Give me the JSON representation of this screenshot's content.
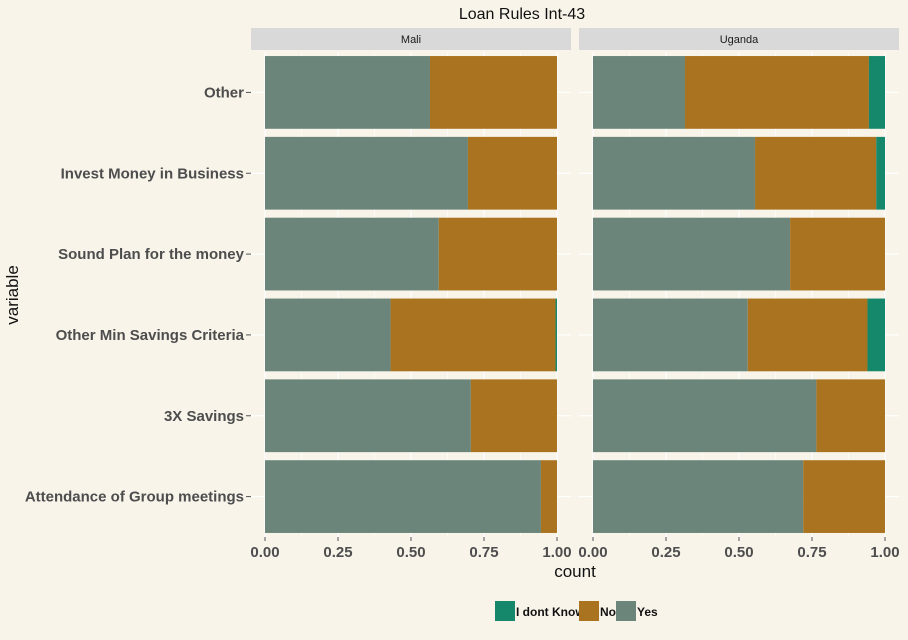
{
  "chart_data": {
    "type": "bar",
    "orientation": "horizontal",
    "stacked": true,
    "title": "Loan Rules Int-43",
    "xlabel": "count",
    "ylabel": "variable",
    "xlim": [
      0,
      1
    ],
    "x_ticks": [
      "0.00",
      "0.25",
      "0.50",
      "0.75",
      "1.00"
    ],
    "grid": true,
    "legend_position": "bottom",
    "categories": [
      "Other",
      "Invest Money in Business",
      "Sound Plan for the money",
      "Other Min Savings Criteria",
      "3X Savings",
      "Attendance of Group meetings"
    ],
    "panels": [
      {
        "name": "Mali",
        "series": [
          {
            "name": "Yes",
            "values": [
              0.565,
              0.695,
              0.595,
              0.43,
              0.705,
              0.945
            ]
          },
          {
            "name": "No",
            "values": [
              0.435,
              0.305,
              0.405,
              0.565,
              0.295,
              0.055
            ]
          },
          {
            "name": "I dont Know",
            "values": [
              0.0,
              0.0,
              0.0,
              0.005,
              0.0,
              0.0
            ]
          }
        ]
      },
      {
        "name": "Uganda",
        "series": [
          {
            "name": "Yes",
            "values": [
              0.315,
              0.555,
              0.675,
              0.53,
              0.765,
              0.72
            ]
          },
          {
            "name": "No",
            "values": [
              0.63,
              0.415,
              0.325,
              0.41,
              0.235,
              0.28
            ]
          },
          {
            "name": "I dont Know",
            "values": [
              0.055,
              0.03,
              0.0,
              0.06,
              0.0,
              0.0
            ]
          }
        ]
      }
    ],
    "legend": [
      "I dont Know",
      "No",
      "Yes"
    ],
    "colors": {
      "Yes": "#6b857a",
      "No": "#a97320",
      "I dont Know": "#15876a"
    },
    "background": "#f8f4ea",
    "strip_color": "#d9d9d9"
  }
}
